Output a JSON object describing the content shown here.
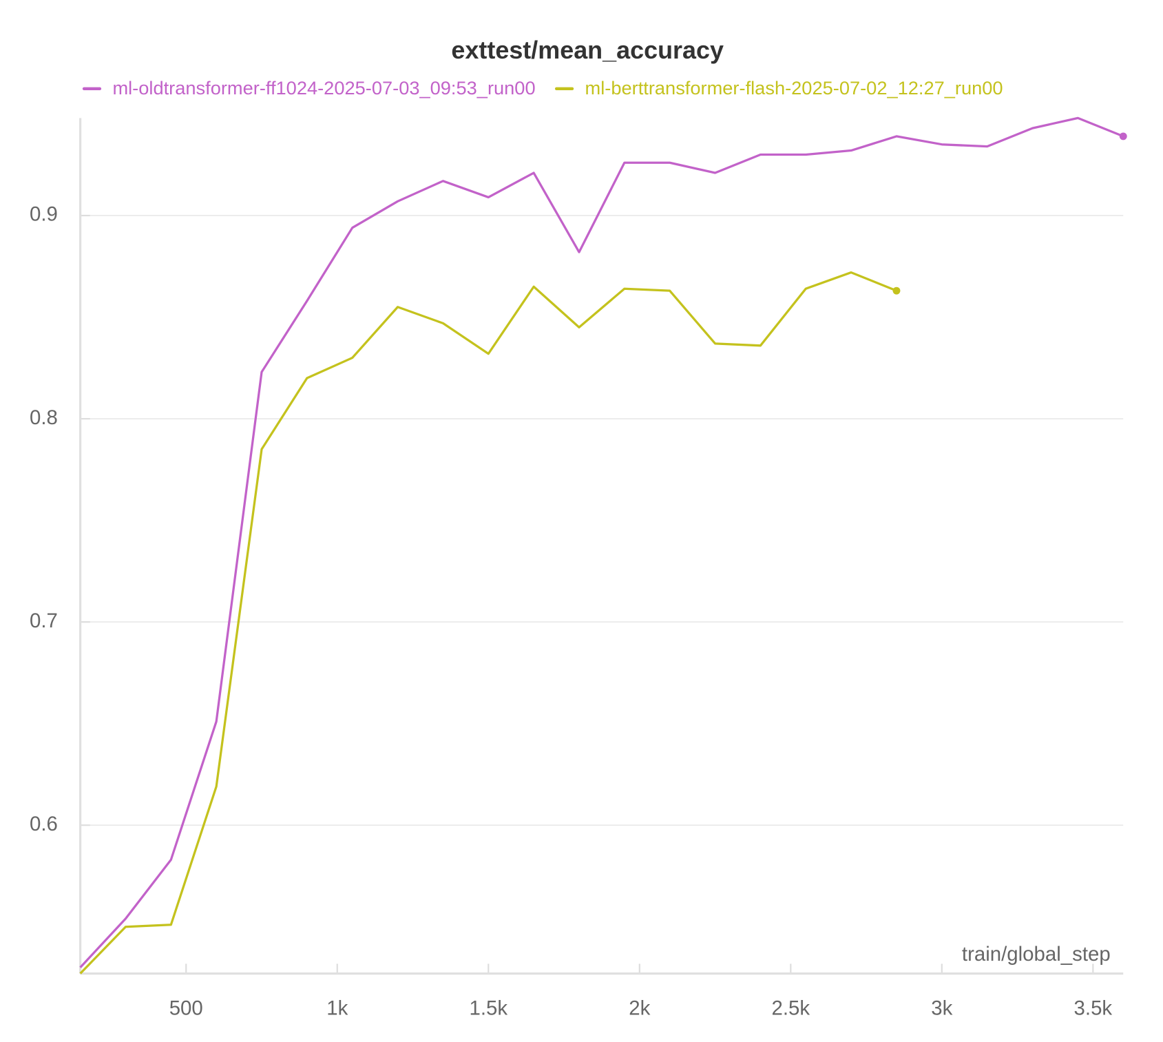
{
  "chart_data": {
    "type": "line",
    "title": "exttest/mean_accuracy",
    "x_label": "train/global_step",
    "x": [
      150,
      300,
      450,
      600,
      750,
      900,
      1050,
      1200,
      1350,
      1500,
      1650,
      1800,
      1950,
      2100,
      2250,
      2400,
      2550,
      2700,
      2850,
      3000,
      3150,
      3300,
      3450,
      3600
    ],
    "series": [
      {
        "name": "ml-oldtransformer-ff1024-2025-07-03_09:53_run00",
        "color": "#c262c9",
        "values": [
          0.53,
          0.554,
          0.583,
          0.651,
          0.823,
          0.858,
          0.894,
          0.907,
          0.917,
          0.909,
          0.921,
          0.882,
          0.926,
          0.926,
          0.921,
          0.93,
          0.93,
          0.932,
          0.939,
          0.935,
          0.934,
          0.943,
          0.948,
          0.939
        ]
      },
      {
        "name": "ml-berttransformer-flash-2025-07-02_12:27_run00",
        "color": "#c4c21d",
        "values": [
          0.527,
          0.55,
          0.551,
          0.619,
          0.785,
          0.82,
          0.83,
          0.855,
          0.847,
          0.832,
          0.865,
          0.845,
          0.864,
          0.863,
          0.837,
          0.836,
          0.864,
          0.872,
          0.863,
          null,
          null,
          null,
          null,
          null
        ]
      }
    ],
    "xlim": [
      150,
      3600
    ],
    "ylim": [
      0.527,
      0.948
    ],
    "xticks": [
      500,
      {
        "value": 1000,
        "label": "1k"
      },
      {
        "value": 1500,
        "label": "1.5k"
      },
      {
        "value": 2000,
        "label": "2k"
      },
      {
        "value": 2500,
        "label": "2.5k"
      },
      {
        "value": 3000,
        "label": "3k"
      },
      {
        "value": 3500,
        "label": "3.5k"
      }
    ],
    "yticks": [
      0.6,
      0.7,
      0.8,
      0.9
    ],
    "grid": true
  }
}
